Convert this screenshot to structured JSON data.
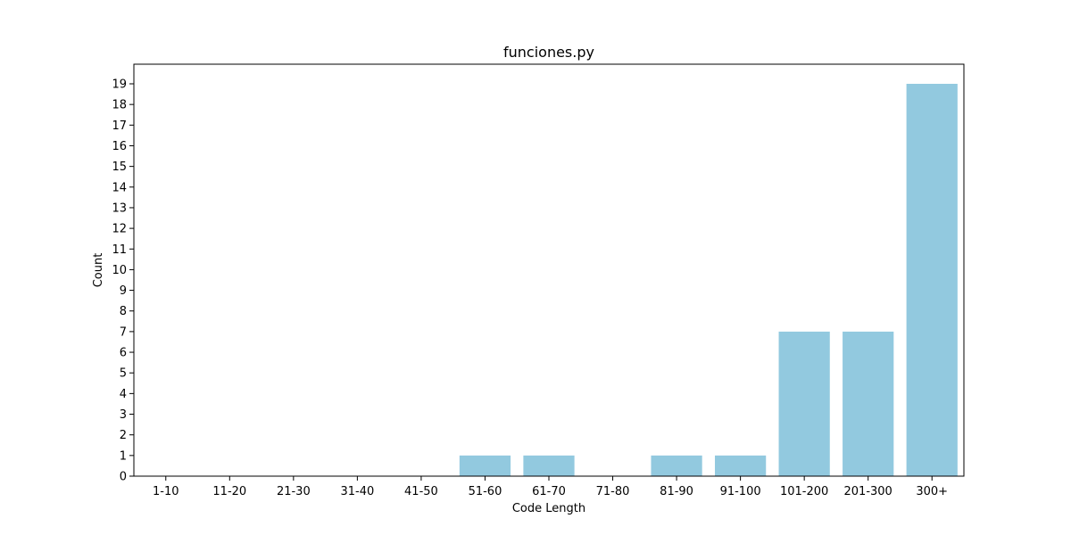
{
  "chart_data": {
    "type": "bar",
    "title": "funciones.py",
    "xlabel": "Code Length",
    "ylabel": "Count",
    "categories": [
      "1-10",
      "11-20",
      "21-30",
      "31-40",
      "41-50",
      "51-60",
      "61-70",
      "71-80",
      "81-90",
      "91-100",
      "101-200",
      "201-300",
      "300+"
    ],
    "values": [
      0,
      0,
      0,
      0,
      0,
      1,
      1,
      0,
      1,
      1,
      7,
      7,
      19
    ],
    "ylim": [
      0,
      19.95
    ],
    "yticks": [
      0,
      1,
      2,
      3,
      4,
      5,
      6,
      7,
      8,
      9,
      10,
      11,
      12,
      13,
      14,
      15,
      16,
      17,
      18,
      19
    ],
    "grid": false,
    "bar_color": "#92c9df"
  }
}
